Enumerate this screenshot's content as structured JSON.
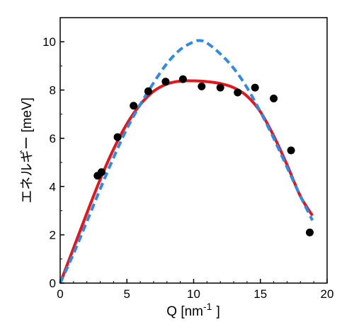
{
  "chart_data": {
    "type": "line",
    "xlabel": "Q [nm",
    "xlabel_superscript": "-1",
    "xlabel_suffix": "]",
    "ylabel": "エネルギー [meV]",
    "xlim": [
      0,
      20
    ],
    "ylim": [
      0,
      11
    ],
    "x_ticks": [
      "0",
      "5",
      "10",
      "15",
      "20"
    ],
    "y_ticks": [
      "0",
      "2",
      "4",
      "6",
      "8",
      "10"
    ],
    "grid": false,
    "legend": "none",
    "series": [
      {
        "style": "solid",
        "color": "#e8141b",
        "x": [
          0,
          1,
          2,
          3,
          4,
          5,
          6,
          7,
          8,
          9,
          10,
          11,
          12,
          13,
          14,
          15,
          16,
          17,
          18,
          18.9
        ],
        "y": [
          0,
          1.45,
          2.9,
          4.3,
          5.55,
          6.6,
          7.4,
          7.95,
          8.25,
          8.37,
          8.38,
          8.35,
          8.27,
          8.1,
          7.75,
          7.1,
          6.1,
          4.9,
          3.6,
          2.8
        ]
      },
      {
        "style": "dashed",
        "color": "#2d8ae6",
        "x": [
          0,
          1,
          2,
          3,
          4,
          5,
          6,
          7,
          8,
          9,
          10,
          10.5,
          11,
          12,
          13,
          14,
          15,
          16,
          17,
          18,
          18.9
        ],
        "y": [
          0,
          1.22,
          2.55,
          3.9,
          5.2,
          6.4,
          7.4,
          8.3,
          9.1,
          9.68,
          10.0,
          10.05,
          9.95,
          9.5,
          8.9,
          8.1,
          7.1,
          6.0,
          4.8,
          3.6,
          2.6
        ]
      },
      {
        "style": "markers",
        "color": "#000000",
        "x": [
          2.8,
          3.1,
          4.3,
          5.5,
          6.6,
          7.9,
          9.2,
          10.6,
          12.0,
          13.3,
          14.6,
          16.0,
          17.3,
          18.7
        ],
        "y": [
          4.45,
          4.6,
          6.05,
          7.35,
          7.95,
          8.35,
          8.45,
          8.15,
          8.1,
          7.9,
          8.1,
          7.65,
          5.5,
          2.1
        ]
      }
    ]
  }
}
